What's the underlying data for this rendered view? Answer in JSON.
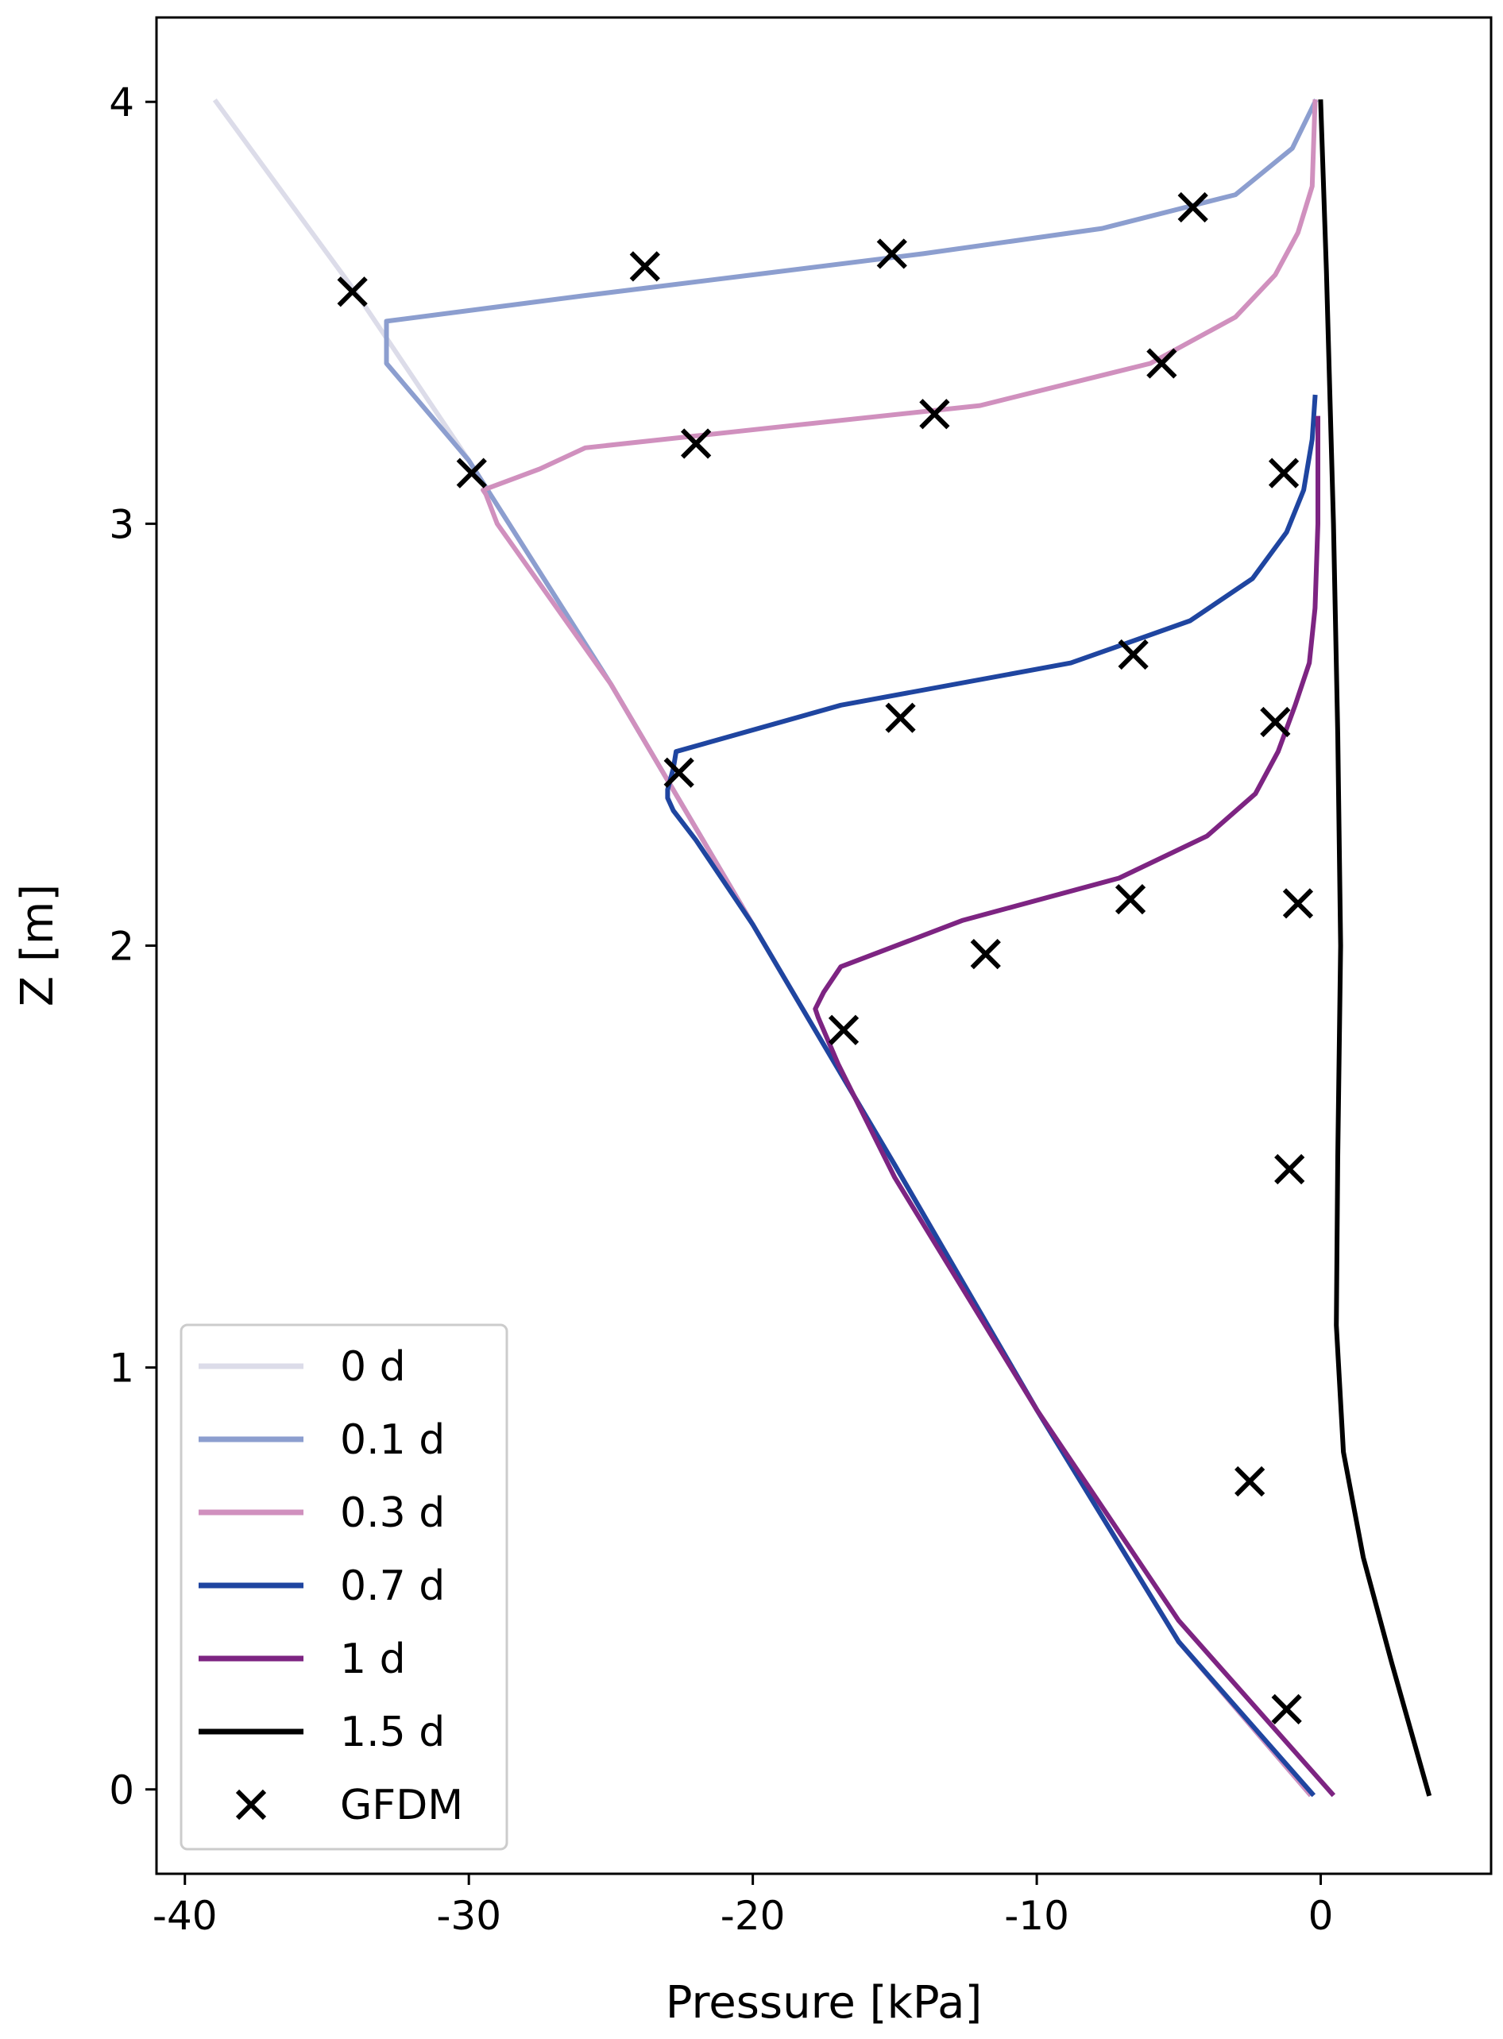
{
  "chart_data": {
    "type": "line",
    "xlabel": "Pressure [kPa]",
    "ylabel": "Z [m]",
    "xlim": [
      -41,
      6
    ],
    "ylim": [
      -0.2,
      4.2
    ],
    "xticks": [
      {
        "value": -40,
        "label": "-40"
      },
      {
        "value": -30,
        "label": "-30"
      },
      {
        "value": -20,
        "label": "-20"
      },
      {
        "value": -10,
        "label": "-10"
      },
      {
        "value": 0,
        "label": "0"
      }
    ],
    "yticks": [
      {
        "value": 0,
        "label": "0"
      },
      {
        "value": 1,
        "label": "1"
      },
      {
        "value": 2,
        "label": "2"
      },
      {
        "value": 3,
        "label": "3"
      },
      {
        "value": 4,
        "label": "4"
      }
    ],
    "grid": false,
    "legend_position": "lower-left",
    "series": [
      {
        "name": "0 d",
        "color": "#dcdce9",
        "points": [
          [
            -38.9,
            4.0
          ],
          [
            -34.0,
            3.55
          ],
          [
            -30.0,
            3.15
          ],
          [
            -25.0,
            2.62
          ],
          [
            -20.0,
            2.05
          ],
          [
            -15.0,
            1.48
          ],
          [
            -10.0,
            0.9
          ],
          [
            -5.0,
            0.35
          ],
          [
            -0.4,
            -0.01
          ]
        ]
      },
      {
        "name": "0.1 d",
        "color": "#8c9ecf",
        "points": [
          [
            -0.2,
            4.0
          ],
          [
            -1.0,
            3.89
          ],
          [
            -3.0,
            3.78
          ],
          [
            -7.7,
            3.7
          ],
          [
            -14.0,
            3.64
          ],
          [
            -20.0,
            3.59
          ],
          [
            -26.0,
            3.54
          ],
          [
            -32.9,
            3.48
          ],
          [
            -32.9,
            3.38
          ],
          [
            -30.0,
            3.15
          ],
          [
            -25.0,
            2.62
          ],
          [
            -20.0,
            2.05
          ],
          [
            -15.0,
            1.48
          ],
          [
            -10.0,
            0.9
          ],
          [
            -5.0,
            0.35
          ],
          [
            -0.4,
            -0.01
          ]
        ]
      },
      {
        "name": "0.3 d",
        "color": "#d090be",
        "points": [
          [
            -0.2,
            4.0
          ],
          [
            -0.3,
            3.8
          ],
          [
            -0.8,
            3.69
          ],
          [
            -1.6,
            3.59
          ],
          [
            -3.0,
            3.49
          ],
          [
            -6.0,
            3.38
          ],
          [
            -12.0,
            3.28
          ],
          [
            -19.0,
            3.23
          ],
          [
            -25.9,
            3.18
          ],
          [
            -27.5,
            3.13
          ],
          [
            -29.5,
            3.08
          ],
          [
            -29.4,
            3.07
          ],
          [
            -29.0,
            3.0
          ],
          [
            -25.0,
            2.62
          ],
          [
            -20.0,
            2.05
          ],
          [
            -15.0,
            1.48
          ],
          [
            -10.0,
            0.9
          ],
          [
            -5.0,
            0.35
          ],
          [
            -0.4,
            -0.01
          ]
        ]
      },
      {
        "name": "0.7 d",
        "color": "#1f45a0",
        "points": [
          [
            -0.2,
            3.3
          ],
          [
            -0.3,
            3.2
          ],
          [
            -0.6,
            3.08
          ],
          [
            -1.2,
            2.98
          ],
          [
            -2.4,
            2.87
          ],
          [
            -4.6,
            2.77
          ],
          [
            -8.8,
            2.67
          ],
          [
            -16.9,
            2.57
          ],
          [
            -22.7,
            2.46
          ],
          [
            -22.8,
            2.42
          ],
          [
            -23.0,
            2.37
          ],
          [
            -23.0,
            2.35
          ],
          [
            -22.8,
            2.32
          ],
          [
            -22.0,
            2.25
          ],
          [
            -20.0,
            2.05
          ],
          [
            -15.0,
            1.48
          ],
          [
            -10.0,
            0.9
          ],
          [
            -5.0,
            0.35
          ],
          [
            -0.3,
            -0.01
          ]
        ]
      },
      {
        "name": "1 d",
        "color": "#7d2482",
        "points": [
          [
            -0.1,
            3.25
          ],
          [
            -0.1,
            3.0
          ],
          [
            -0.2,
            2.8
          ],
          [
            -0.4,
            2.67
          ],
          [
            -0.9,
            2.57
          ],
          [
            -1.5,
            2.46
          ],
          [
            -2.3,
            2.36
          ],
          [
            -4.0,
            2.26
          ],
          [
            -7.1,
            2.16
          ],
          [
            -12.6,
            2.06
          ],
          [
            -16.9,
            1.95
          ],
          [
            -17.5,
            1.89
          ],
          [
            -17.8,
            1.85
          ],
          [
            -17.7,
            1.83
          ],
          [
            -17.0,
            1.72
          ],
          [
            -15.0,
            1.45
          ],
          [
            -10.0,
            0.9
          ],
          [
            -5.0,
            0.4
          ],
          [
            0.4,
            -0.01
          ]
        ]
      },
      {
        "name": "1.5 d",
        "color": "#000000",
        "points": [
          [
            0.0,
            4.0
          ],
          [
            0.2,
            3.6
          ],
          [
            0.45,
            3.0
          ],
          [
            0.6,
            2.5
          ],
          [
            0.7,
            2.0
          ],
          [
            0.6,
            1.5
          ],
          [
            0.55,
            1.1
          ],
          [
            0.8,
            0.8
          ],
          [
            1.5,
            0.55
          ],
          [
            2.5,
            0.3
          ],
          [
            3.8,
            -0.01
          ]
        ]
      }
    ],
    "scatter": {
      "name": "GFDM",
      "color": "#000000",
      "points": [
        [
          -34.1,
          3.55
        ],
        [
          -23.8,
          3.61
        ],
        [
          -15.1,
          3.64
        ],
        [
          -4.5,
          3.75
        ],
        [
          -29.9,
          3.12
        ],
        [
          -22.0,
          3.19
        ],
        [
          -13.6,
          3.26
        ],
        [
          -5.6,
          3.38
        ],
        [
          -1.3,
          3.12
        ],
        [
          -22.6,
          2.41
        ],
        [
          -14.8,
          2.54
        ],
        [
          -6.6,
          2.69
        ],
        [
          -1.6,
          2.53
        ],
        [
          -16.8,
          1.8
        ],
        [
          -11.8,
          1.98
        ],
        [
          -6.7,
          2.11
        ],
        [
          -0.8,
          2.1
        ],
        [
          -1.1,
          1.47
        ],
        [
          -2.5,
          0.73
        ],
        [
          -1.2,
          0.19
        ]
      ]
    }
  }
}
